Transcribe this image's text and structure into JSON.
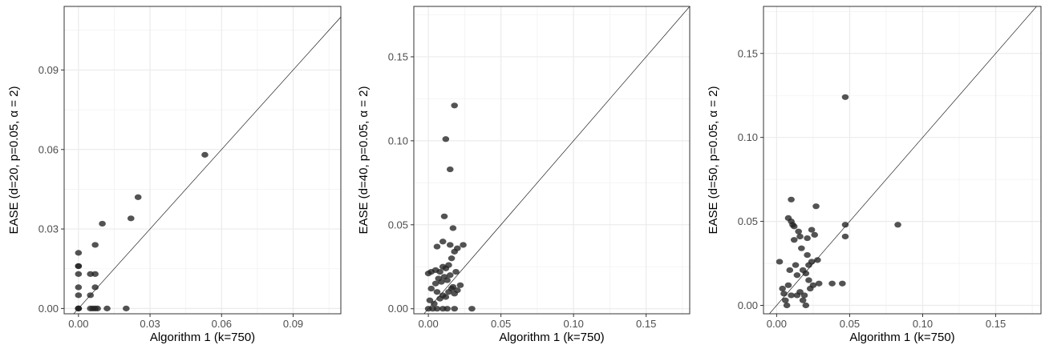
{
  "chart_data": [
    {
      "type": "scatter",
      "xlabel": "Algorithm 1 (k=750)",
      "ylabel": "EASE (d=20, p=0.05, α = 2)",
      "xlim": [
        -0.006,
        0.11
      ],
      "ylim": [
        -0.002,
        0.114
      ],
      "xticks": [
        0.0,
        0.03,
        0.06,
        0.09
      ],
      "yticks": [
        0.0,
        0.03,
        0.06,
        0.09
      ],
      "xtick_labels": [
        "0.00",
        "0.03",
        "0.06",
        "0.09"
      ],
      "ytick_labels": [
        "0.00",
        "0.03",
        "0.06",
        "0.09"
      ],
      "grid": true,
      "reference_line": "y = x",
      "point_color": "#222222",
      "points": [
        [
          0.0,
          0.0
        ],
        [
          0.0,
          0.0
        ],
        [
          0.0,
          0.0
        ],
        [
          0.0,
          0.005
        ],
        [
          0.0,
          0.008
        ],
        [
          0.0,
          0.013
        ],
        [
          0.0,
          0.016
        ],
        [
          0.0,
          0.016
        ],
        [
          0.0,
          0.021
        ],
        [
          0.005,
          0.0
        ],
        [
          0.006,
          0.0
        ],
        [
          0.007,
          0.0
        ],
        [
          0.008,
          0.0
        ],
        [
          0.005,
          0.005
        ],
        [
          0.005,
          0.013
        ],
        [
          0.007,
          0.013
        ],
        [
          0.007,
          0.008
        ],
        [
          0.007,
          0.024
        ],
        [
          0.01,
          0.032
        ],
        [
          0.012,
          0.0
        ],
        [
          0.02,
          0.0
        ],
        [
          0.022,
          0.034
        ],
        [
          0.025,
          0.042
        ],
        [
          0.053,
          0.058
        ]
      ]
    },
    {
      "type": "scatter",
      "xlabel": "Algorithm 1 (k=750)",
      "ylabel": "EASE (d=40, p=0.05, α = 2)",
      "xlim": [
        -0.01,
        0.18
      ],
      "ylim": [
        -0.003,
        0.18
      ],
      "xticks": [
        0.0,
        0.05,
        0.1,
        0.15
      ],
      "yticks": [
        0.0,
        0.05,
        0.1,
        0.15
      ],
      "xtick_labels": [
        "0.00",
        "0.05",
        "0.10",
        "0.15"
      ],
      "ytick_labels": [
        "0.00",
        "0.05",
        "0.10",
        "0.15"
      ],
      "grid": true,
      "reference_line": "y = x",
      "point_color": "#222222",
      "points": [
        [
          0.0,
          0.0
        ],
        [
          0.003,
          0.0
        ],
        [
          0.006,
          0.0
        ],
        [
          0.01,
          0.0
        ],
        [
          0.013,
          0.0
        ],
        [
          0.018,
          0.0
        ],
        [
          0.03,
          0.0
        ],
        [
          0.001,
          0.005
        ],
        [
          0.004,
          0.003
        ],
        [
          0.006,
          0.01
        ],
        [
          0.008,
          0.006
        ],
        [
          0.01,
          0.008
        ],
        [
          0.012,
          0.007
        ],
        [
          0.014,
          0.01
        ],
        [
          0.016,
          0.012
        ],
        [
          0.018,
          0.009
        ],
        [
          0.02,
          0.011
        ],
        [
          0.022,
          0.014
        ],
        [
          0.002,
          0.012
        ],
        [
          0.005,
          0.015
        ],
        [
          0.007,
          0.018
        ],
        [
          0.009,
          0.016
        ],
        [
          0.011,
          0.019
        ],
        [
          0.013,
          0.017
        ],
        [
          0.015,
          0.02
        ],
        [
          0.017,
          0.013
        ],
        [
          0.019,
          0.022
        ],
        [
          0.0,
          0.021
        ],
        [
          0.002,
          0.022
        ],
        [
          0.005,
          0.023
        ],
        [
          0.008,
          0.022
        ],
        [
          0.01,
          0.025
        ],
        [
          0.012,
          0.024
        ],
        [
          0.014,
          0.026
        ],
        [
          0.016,
          0.03
        ],
        [
          0.018,
          0.034
        ],
        [
          0.006,
          0.037
        ],
        [
          0.01,
          0.04
        ],
        [
          0.015,
          0.038
        ],
        [
          0.02,
          0.036
        ],
        [
          0.024,
          0.038
        ],
        [
          0.017,
          0.048
        ],
        [
          0.011,
          0.055
        ],
        [
          0.015,
          0.083
        ],
        [
          0.012,
          0.101
        ],
        [
          0.018,
          0.121
        ]
      ]
    },
    {
      "type": "scatter",
      "xlabel": "Algorithm 1 (k=750)",
      "ylabel": "EASE (d=50, p=0.05, α = 2)",
      "xlim": [
        -0.009,
        0.181
      ],
      "ylim": [
        -0.005,
        0.178
      ],
      "xticks": [
        0.0,
        0.05,
        0.1,
        0.15
      ],
      "yticks": [
        0.0,
        0.05,
        0.1,
        0.15
      ],
      "xtick_labels": [
        "0.00",
        "0.05",
        "0.10",
        "0.15"
      ],
      "ytick_labels": [
        "0.00",
        "0.05",
        "0.10",
        "0.15"
      ],
      "grid": true,
      "reference_line": "y = x",
      "point_color": "#222222",
      "points": [
        [
          0.002,
          0.026
        ],
        [
          0.004,
          0.01
        ],
        [
          0.005,
          0.007
        ],
        [
          0.006,
          0.003
        ],
        [
          0.007,
          0.0
        ],
        [
          0.008,
          0.012
        ],
        [
          0.009,
          0.021
        ],
        [
          0.01,
          0.006
        ],
        [
          0.011,
          0.048
        ],
        [
          0.012,
          0.047
        ],
        [
          0.008,
          0.052
        ],
        [
          0.01,
          0.05
        ],
        [
          0.012,
          0.039
        ],
        [
          0.013,
          0.024
        ],
        [
          0.014,
          0.006
        ],
        [
          0.015,
          0.044
        ],
        [
          0.016,
          0.041
        ],
        [
          0.017,
          0.034
        ],
        [
          0.018,
          0.021
        ],
        [
          0.019,
          0.006
        ],
        [
          0.02,
          0.019
        ],
        [
          0.021,
          0.03
        ],
        [
          0.022,
          0.024
        ],
        [
          0.023,
          0.01
        ],
        [
          0.024,
          0.026
        ],
        [
          0.025,
          0.012
        ],
        [
          0.026,
          0.042
        ],
        [
          0.027,
          0.059
        ],
        [
          0.028,
          0.027
        ],
        [
          0.029,
          0.013
        ],
        [
          0.014,
          0.018
        ],
        [
          0.016,
          0.008
        ],
        [
          0.018,
          0.003
        ],
        [
          0.02,
          0.0
        ],
        [
          0.022,
          0.015
        ],
        [
          0.01,
          0.063
        ],
        [
          0.038,
          0.013
        ],
        [
          0.045,
          0.013
        ],
        [
          0.047,
          0.041
        ],
        [
          0.047,
          0.048
        ],
        [
          0.047,
          0.124
        ],
        [
          0.083,
          0.048
        ],
        [
          0.024,
          0.045
        ],
        [
          0.021,
          0.04
        ]
      ]
    }
  ]
}
